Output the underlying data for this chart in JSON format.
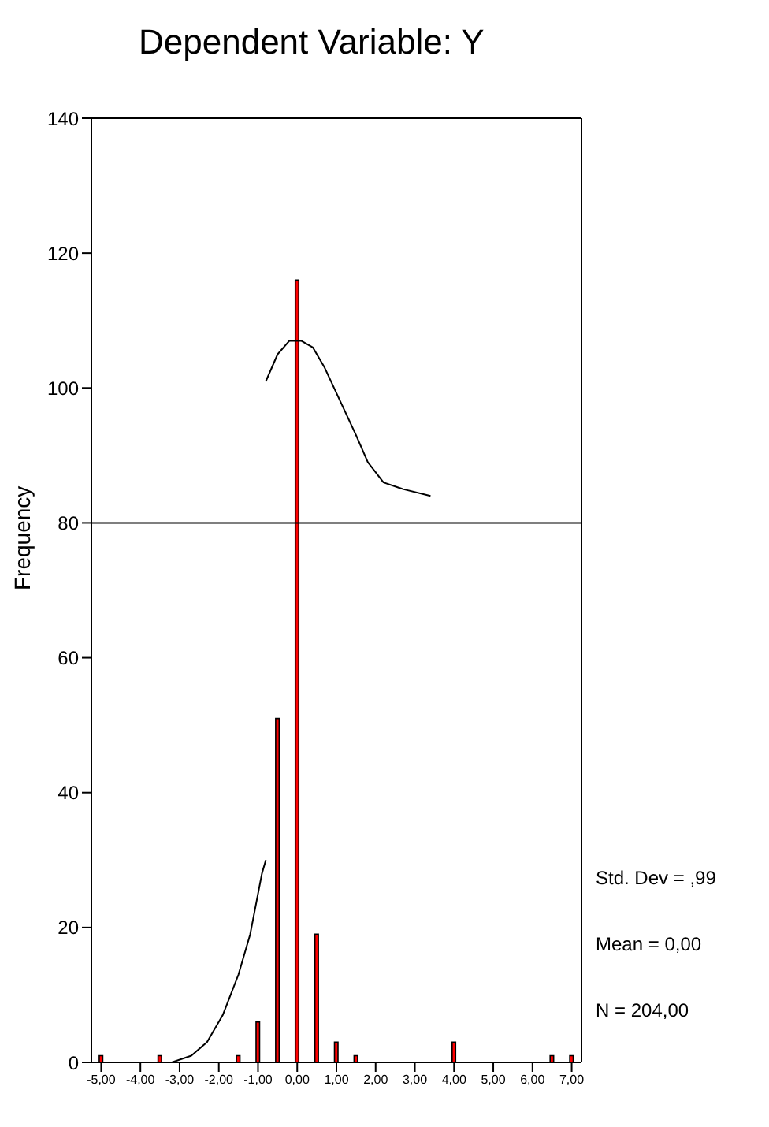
{
  "chart_data": {
    "type": "histogram",
    "title": "Dependent Variable: Y",
    "ylabel": "Frequency",
    "bins": [
      -5.25,
      -4.75,
      -4.25,
      -3.75,
      -3.25,
      -2.75,
      -2.25,
      -1.75,
      -1.25,
      -0.75,
      -0.25,
      0.25,
      0.75,
      1.25,
      1.75,
      2.25,
      2.75,
      3.25,
      3.75,
      4.25,
      4.75,
      5.25,
      5.75,
      6.25,
      6.75,
      7.25
    ],
    "series": [
      {
        "color": "#ff0000",
        "values": [
          1,
          0,
          0,
          1,
          0,
          0,
          0,
          1,
          6,
          51,
          116,
          19,
          3,
          1,
          0,
          0,
          0,
          0,
          3,
          0,
          0,
          0,
          0,
          1,
          1
        ]
      },
      {
        "type": "line",
        "color": "#000000",
        "x": [
          -3.2,
          -2.7,
          -2.3,
          -1.9,
          -1.5,
          -1.2,
          -0.9,
          -0.8
        ],
        "values": [
          0,
          1,
          3,
          7,
          13,
          19,
          28,
          30
        ]
      },
      {
        "type": "line",
        "color": "#000000",
        "x": [
          -0.8,
          -0.5,
          -0.2,
          0.1,
          0.4,
          0.7,
          1.1,
          1.5,
          1.8,
          2.2,
          2.7,
          3.4
        ],
        "values": [
          101,
          105,
          107,
          107,
          106,
          103,
          98,
          93,
          89,
          86,
          85,
          84
        ]
      }
    ],
    "xlim": [
      -5.25,
      7.25
    ],
    "ylim": [
      0,
      140
    ],
    "xticks": [
      {
        "value": -5,
        "label": "-5,00"
      },
      {
        "value": -4,
        "label": "-4,00"
      },
      {
        "value": -3,
        "label": "-3,00"
      },
      {
        "value": -2,
        "label": "-2,00"
      },
      {
        "value": -1,
        "label": "-1,00"
      },
      {
        "value": 0,
        "label": "0,00"
      },
      {
        "value": 1,
        "label": "1,00"
      },
      {
        "value": 2,
        "label": "2,00"
      },
      {
        "value": 3,
        "label": "3,00"
      },
      {
        "value": 4,
        "label": "4,00"
      },
      {
        "value": 5,
        "label": "5,00"
      },
      {
        "value": 6,
        "label": "6,00"
      },
      {
        "value": 7,
        "label": "7,00"
      }
    ],
    "yticks": [
      0,
      20,
      40,
      60,
      80,
      100,
      120,
      140
    ],
    "ref_lines": [
      {
        "axis": "y",
        "value": 80,
        "color": "#000000"
      }
    ],
    "annotations": [
      "Std. Dev = ,99",
      "Mean = 0,00",
      "N = 204,00"
    ]
  }
}
